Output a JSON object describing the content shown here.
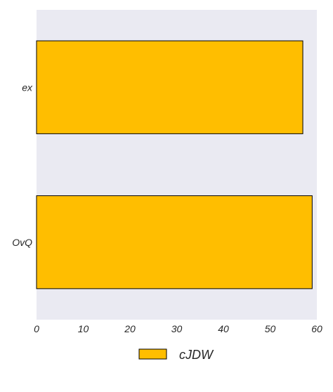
{
  "chart_data": {
    "type": "bar",
    "orientation": "horizontal",
    "categories": [
      "ex",
      "OvQ"
    ],
    "series": [
      {
        "name": "cJDW",
        "values": [
          57,
          59
        ],
        "color": "#FFBE00"
      }
    ],
    "xlim": [
      0,
      60
    ],
    "xticks": [
      0,
      10,
      20,
      30,
      40,
      50,
      60
    ],
    "title": "",
    "xlabel": "",
    "ylabel": "",
    "grid": false,
    "legend_position": "bottom-center",
    "background_color": "#EAEAF2",
    "bar_edge_color": "#000000"
  }
}
